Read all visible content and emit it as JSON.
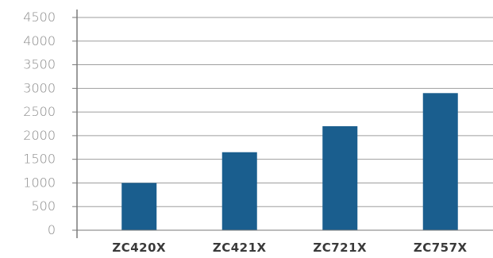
{
  "chart_data": {
    "type": "bar",
    "categories": [
      "ZC420X",
      "ZC421X",
      "ZC721X",
      "ZC757X"
    ],
    "values": [
      1000,
      1650,
      2200,
      2900
    ],
    "ylim": [
      0,
      4500
    ],
    "yticks": [
      0,
      500,
      1000,
      1500,
      2000,
      2500,
      3000,
      3500,
      4000,
      4500
    ],
    "ytick_labels": [
      "0",
      "500",
      "1000",
      "1500",
      "2000",
      "2500",
      "3000",
      "3500",
      "4000",
      "4500"
    ],
    "grid": true,
    "legend": "none",
    "colors": {
      "bar": "#1a5e8e",
      "grid": "#9e9e9e",
      "axis": "#7a7a7a",
      "tick_text": "#8c8c8c",
      "category_text": "#3a3a3a"
    }
  }
}
